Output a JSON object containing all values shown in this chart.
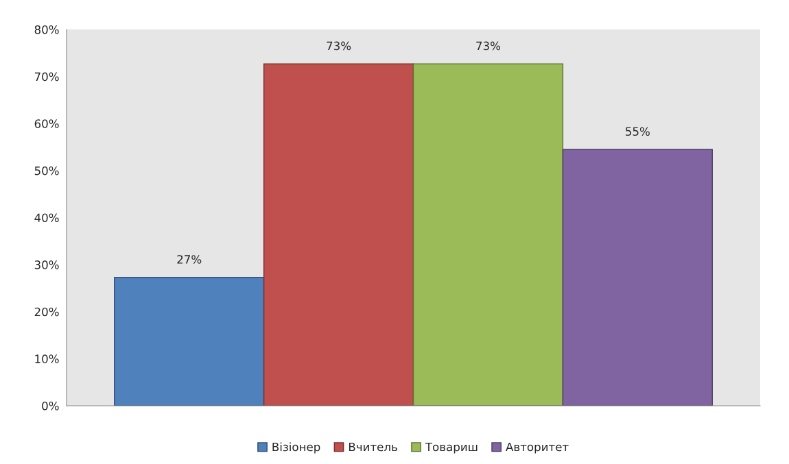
{
  "chart_data": {
    "type": "bar",
    "categories": [
      null
    ],
    "series": [
      {
        "name": "Візіонер",
        "color": "#4f81bd",
        "values": [
          27.3
        ],
        "value_labels": [
          "27%"
        ]
      },
      {
        "name": "Вчитель",
        "color": "#c0504d",
        "values": [
          72.7
        ],
        "value_labels": [
          "73%"
        ]
      },
      {
        "name": "Товариш",
        "color": "#9bbb59",
        "values": [
          72.7
        ],
        "value_labels": [
          "73%"
        ]
      },
      {
        "name": "Авторитет",
        "color": "#8064a2",
        "values": [
          54.5
        ],
        "value_labels": [
          "55%"
        ]
      }
    ],
    "ylim": [
      0,
      80
    ],
    "yticks": [
      {
        "value": 0,
        "label": "0%"
      },
      {
        "value": 10,
        "label": "10%"
      },
      {
        "value": 20,
        "label": "20%"
      },
      {
        "value": 30,
        "label": "30%"
      },
      {
        "value": 40,
        "label": "40%"
      },
      {
        "value": 50,
        "label": "50%"
      },
      {
        "value": 60,
        "label": "60%"
      },
      {
        "value": 70,
        "label": "70%"
      },
      {
        "value": 80,
        "label": "80%"
      }
    ],
    "grid": false,
    "legend": "bottom"
  }
}
